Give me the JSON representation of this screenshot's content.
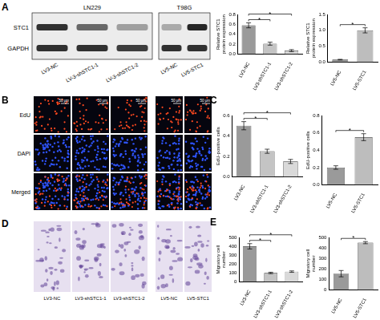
{
  "panel_labels": [
    "A",
    "B",
    "C",
    "D",
    "E"
  ],
  "western_blot": {
    "proteins": [
      "STC1",
      "GAPDH"
    ],
    "cell_lines": [
      {
        "name": "LN229",
        "lanes": [
          "LV3-NC",
          "LV-3-shSTC1-1",
          "LV-3-shSTC1-2"
        ],
        "band_intensity": {
          "STC1": [
            0.85,
            0.6,
            0.35
          ],
          "GAPDH": [
            0.85,
            0.85,
            0.8
          ]
        }
      },
      {
        "name": "T98G",
        "lanes": [
          "LV5-NC",
          "LV5-STC1"
        ],
        "band_intensity": {
          "STC1": [
            0.3,
            0.9
          ],
          "GAPDH": [
            0.85,
            0.85
          ]
        }
      }
    ]
  },
  "edu_images": {
    "rows": [
      "EdU",
      "DAPI",
      "Merged"
    ],
    "scale_bar": "50 μm"
  },
  "transwell_images": {
    "labels": [
      "LV3-NC",
      "LV3-shSTC1-1",
      "LV3-shSTC1-2",
      "LV5-NC",
      "LV5-STC1"
    ]
  },
  "chart_data": [
    {
      "type": "bar",
      "y_label": "Relative STC1 protein expression",
      "categories": [
        "LV3-NC",
        "LV3-shSTC1-1",
        "LV3-shSTC1-2"
      ],
      "values": [
        0.58,
        0.21,
        0.07
      ],
      "errors": [
        0.05,
        0.03,
        0.02
      ],
      "significance": [
        null,
        "*",
        "*"
      ],
      "colors": [
        "#9a9a9a",
        "#c4c4c4",
        "#d9d9d9"
      ],
      "ylim": [
        0,
        0.8
      ],
      "yticks": [
        {
          "value": 0,
          "label": "0.0"
        },
        {
          "value": 0.2,
          "label": "0.2"
        },
        {
          "value": 0.4,
          "label": "0.4"
        },
        {
          "value": 0.6,
          "label": "0.6"
        },
        {
          "value": 0.8,
          "label": "0.8"
        }
      ],
      "grid": false
    },
    {
      "type": "bar",
      "y_label": "Relative STC1 protein expression",
      "categories": [
        "LV5-NC",
        "LV5-STC1"
      ],
      "values": [
        0.08,
        1.0
      ],
      "errors": [
        0.01,
        0.08
      ],
      "significance": [
        null,
        "*"
      ],
      "colors": [
        "#9a9a9a",
        "#bdbdbd"
      ],
      "ylim": [
        0,
        1.5
      ],
      "yticks": [
        {
          "value": 0,
          "label": "0.0"
        },
        {
          "value": 0.5,
          "label": "0.5"
        },
        {
          "value": 1,
          "label": "1.0"
        },
        {
          "value": 1.5,
          "label": "1.5"
        }
      ],
      "grid": false
    },
    {
      "type": "bar",
      "y_label": "EdU-positive cells",
      "categories": [
        "LV3-NC",
        "LV3-shSTC1-1",
        "LV3-shSTC1-2"
      ],
      "values": [
        0.5,
        0.25,
        0.15
      ],
      "errors": [
        0.04,
        0.02,
        0.02
      ],
      "significance": [
        null,
        "*",
        "*"
      ],
      "colors": [
        "#9a9a9a",
        "#c4c4c4",
        "#d9d9d9"
      ],
      "ylim": [
        0,
        0.6
      ],
      "yticks": [
        {
          "value": 0,
          "label": "0.0"
        },
        {
          "value": 0.2,
          "label": "0.2"
        },
        {
          "value": 0.4,
          "label": "0.4"
        },
        {
          "value": 0.6,
          "label": "0.6"
        }
      ],
      "grid": false
    },
    {
      "type": "bar",
      "y_label": "EdU-positive cells",
      "categories": [
        "LV5-NC",
        "LV5-STC1"
      ],
      "values": [
        0.2,
        0.55
      ],
      "errors": [
        0.02,
        0.04
      ],
      "significance": [
        null,
        "*"
      ],
      "colors": [
        "#9a9a9a",
        "#bdbdbd"
      ],
      "ylim": [
        0,
        0.8
      ],
      "yticks": [
        {
          "value": 0,
          "label": "0.0"
        },
        {
          "value": 0.2,
          "label": "0.2"
        },
        {
          "value": 0.4,
          "label": "0.4"
        },
        {
          "value": 0.6,
          "label": "0.6"
        },
        {
          "value": 0.8,
          "label": "0.8"
        }
      ],
      "grid": false
    },
    {
      "type": "bar",
      "y_label": "Migratory cell number",
      "categories": [
        "LV3-NC",
        "LV3-shSTC1-1",
        "LV3-shSTC1-2"
      ],
      "values": [
        400,
        100,
        115
      ],
      "errors": [
        30,
        8,
        8
      ],
      "significance": [
        null,
        "*",
        "*"
      ],
      "colors": [
        "#9a9a9a",
        "#c4c4c4",
        "#d9d9d9"
      ],
      "ylim": [
        0,
        500
      ],
      "yticks": [
        0,
        100,
        200,
        300,
        400,
        500
      ],
      "grid": false
    },
    {
      "type": "bar",
      "y_label": "Migratory cell number",
      "categories": [
        "LV5-NC",
        "LV5-STC1"
      ],
      "values": [
        155,
        450
      ],
      "errors": [
        30,
        10
      ],
      "significance": [
        null,
        "*"
      ],
      "colors": [
        "#9a9a9a",
        "#bdbdbd"
      ],
      "ylim": [
        0,
        500
      ],
      "yticks": [
        0,
        100,
        200,
        300,
        400,
        500
      ],
      "grid": false
    }
  ]
}
